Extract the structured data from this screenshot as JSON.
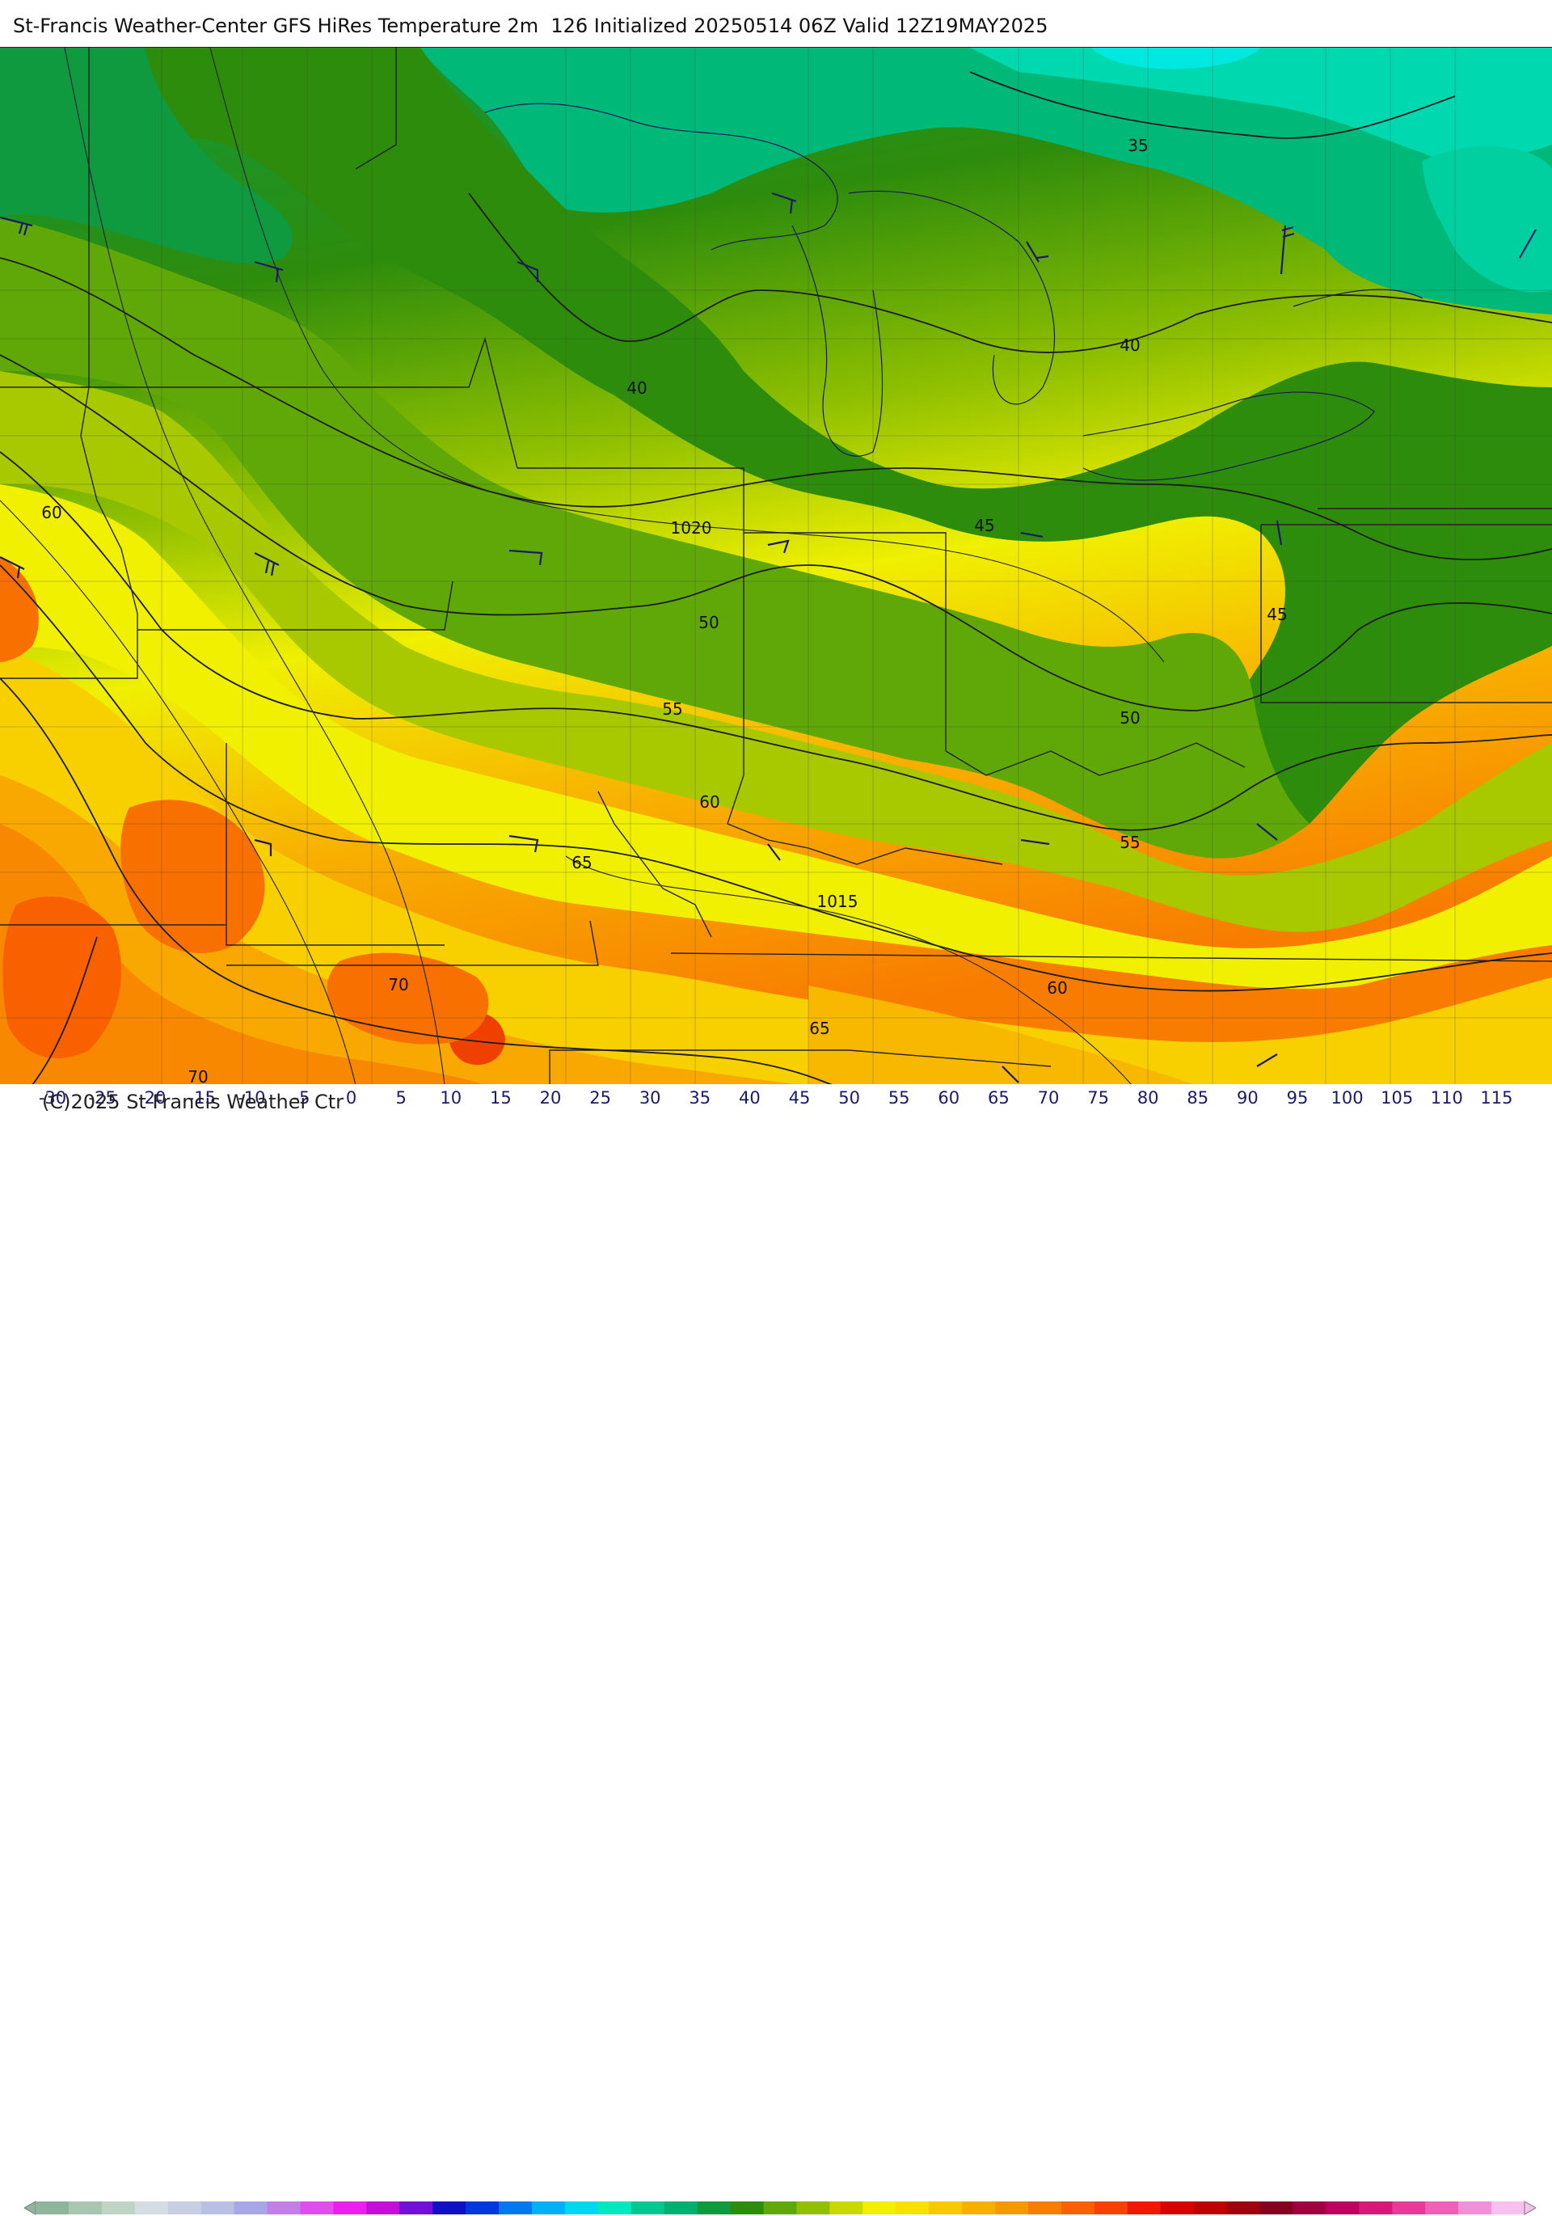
{
  "header": {
    "title": "St-Francis Weather-Center GFS HiRes Temperature 2m  126 Initialized 20250514 06Z Valid 12Z19MAY2025"
  },
  "map": {
    "temperature_labels": [
      "35",
      "40",
      "40",
      "45",
      "45",
      "50",
      "50",
      "55",
      "55",
      "60",
      "60",
      "60",
      "65",
      "65",
      "70",
      "70"
    ],
    "pressure_labels": [
      "1020",
      "1015"
    ]
  },
  "colorbar": {
    "ticks": [
      "-30",
      "-25",
      "-20",
      "-15",
      "-10",
      "-5",
      "0",
      "5",
      "10",
      "15",
      "20",
      "25",
      "30",
      "35",
      "40",
      "45",
      "50",
      "55",
      "60",
      "65",
      "70",
      "75",
      "80",
      "85",
      "90",
      "95",
      "100",
      "105",
      "110",
      "115"
    ],
    "colors": [
      "#8fb59a",
      "#a8c6b0",
      "#c0d4c6",
      "#d5dde4",
      "#c7cfe4",
      "#b8c0e6",
      "#a7a6e6",
      "#c27fe6",
      "#e04cee",
      "#ee1df0",
      "#c50ed8",
      "#7010d8",
      "#1010c8",
      "#0038e0",
      "#0078f0",
      "#00b0f8",
      "#00d8f0",
      "#00e8c0",
      "#00c890",
      "#00b070",
      "#109a40",
      "#2e8c0c",
      "#60a808",
      "#90c000",
      "#c8d800",
      "#f0f000",
      "#f8e000",
      "#f8c800",
      "#f8b000",
      "#f89800",
      "#f87c00",
      "#f86000",
      "#f84000",
      "#f01800",
      "#d80000",
      "#c00000",
      "#a00010",
      "#880020",
      "#a00040",
      "#c00060",
      "#d81878",
      "#e83898",
      "#f060b8",
      "#f090d8",
      "#f8c0ee"
    ],
    "copyright": "(C)2025 St Francis Weather Ctr"
  }
}
